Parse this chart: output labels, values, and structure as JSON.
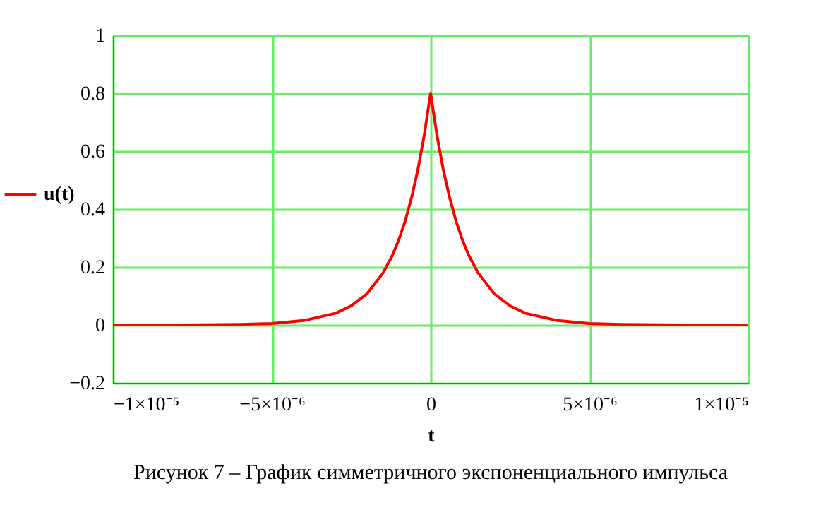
{
  "chart_data": {
    "type": "line",
    "xlabel": "t",
    "legend": "left",
    "grid": true,
    "marker": "none",
    "line_style": "solid",
    "annotations": [
      "Рисунок 7 – График симметричного экспоненциального импульса"
    ],
    "xlim": [
      -1e-05,
      1e-05
    ],
    "ylim": [
      -0.2,
      1
    ],
    "xticks": [
      {
        "value": -1e-05,
        "label": "−1×10⁻⁵"
      },
      {
        "value": -5e-06,
        "label": "−5×10⁻⁶"
      },
      0,
      {
        "value": 5e-06,
        "label": "5×10⁻⁶"
      },
      {
        "value": 1e-05,
        "label": "1×10⁻⁵"
      }
    ],
    "yticks": [
      {
        "value": -0.2,
        "label": "−0.2"
      },
      0,
      0.2,
      0.4,
      0.6,
      0.8,
      1
    ],
    "series": [
      {
        "name": "u(t)",
        "color": "#ff0000",
        "x": [
          -1e-05,
          -8e-06,
          -6e-06,
          -5e-06,
          -4e-06,
          -3e-06,
          -2.5e-06,
          -2e-06,
          -1.5e-06,
          -1.2e-06,
          -1e-06,
          -8e-07,
          -6e-07,
          -4e-07,
          -2e-07,
          0,
          2e-07,
          4e-07,
          6e-07,
          8e-07,
          1e-06,
          1.2e-06,
          1.5e-06,
          2e-06,
          2.5e-06,
          3e-06,
          4e-06,
          5e-06,
          6e-06,
          8e-06,
          1e-05
        ],
        "values": [
          0,
          0,
          0.002,
          0.005,
          0.015,
          0.04,
          0.066,
          0.108,
          0.179,
          0.241,
          0.294,
          0.359,
          0.439,
          0.536,
          0.655,
          0.8,
          0.655,
          0.536,
          0.439,
          0.359,
          0.294,
          0.241,
          0.179,
          0.108,
          0.066,
          0.04,
          0.015,
          0.005,
          0.002,
          0,
          0
        ]
      }
    ]
  }
}
